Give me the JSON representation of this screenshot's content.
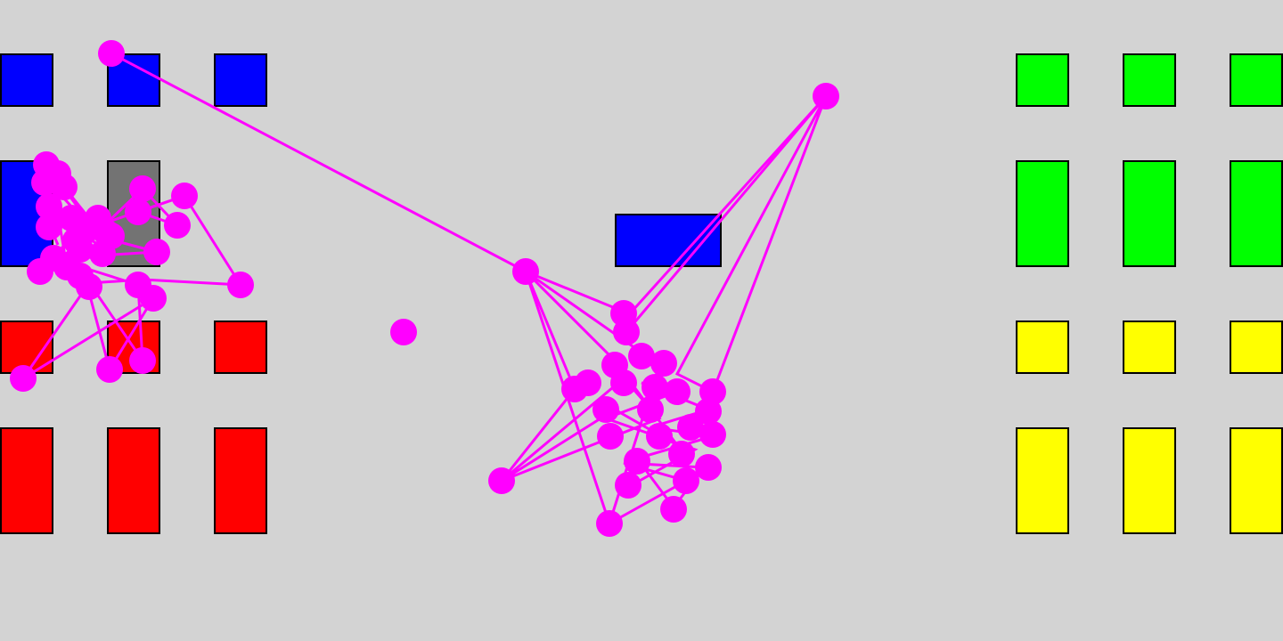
{
  "colors": {
    "background": "#d3d3d3",
    "blue": "#0000ff",
    "green": "#00ff00",
    "red": "#ff0000",
    "yellow": "#ffff00",
    "gray": "#737373",
    "outline": "#000000",
    "trail": "#ff00ff"
  },
  "tiles": [
    {
      "id": "blue-small-1",
      "color": "blue"
    },
    {
      "id": "blue-small-2",
      "color": "blue"
    },
    {
      "id": "blue-small-3",
      "color": "blue"
    },
    {
      "id": "blue-tall-1",
      "color": "blue"
    },
    {
      "id": "gray-tall-1",
      "color": "gray"
    },
    {
      "id": "red-small-1",
      "color": "red"
    },
    {
      "id": "red-small-2",
      "color": "red"
    },
    {
      "id": "red-small-3",
      "color": "red"
    },
    {
      "id": "red-tall-1",
      "color": "red"
    },
    {
      "id": "red-tall-2",
      "color": "red"
    },
    {
      "id": "red-tall-3",
      "color": "red"
    },
    {
      "id": "blue-wide-center",
      "color": "blue"
    },
    {
      "id": "green-small-1",
      "color": "green"
    },
    {
      "id": "green-small-2",
      "color": "green"
    },
    {
      "id": "green-small-3",
      "color": "green"
    },
    {
      "id": "green-tall-1",
      "color": "green"
    },
    {
      "id": "green-tall-2",
      "color": "green"
    },
    {
      "id": "green-tall-3",
      "color": "green"
    },
    {
      "id": "yellow-small-1",
      "color": "yellow"
    },
    {
      "id": "yellow-small-2",
      "color": "yellow"
    },
    {
      "id": "yellow-small-3",
      "color": "yellow"
    },
    {
      "id": "yellow-tall-1",
      "color": "yellow"
    },
    {
      "id": "yellow-tall-2",
      "color": "yellow"
    },
    {
      "id": "yellow-tall-3",
      "color": "yellow"
    }
  ]
}
